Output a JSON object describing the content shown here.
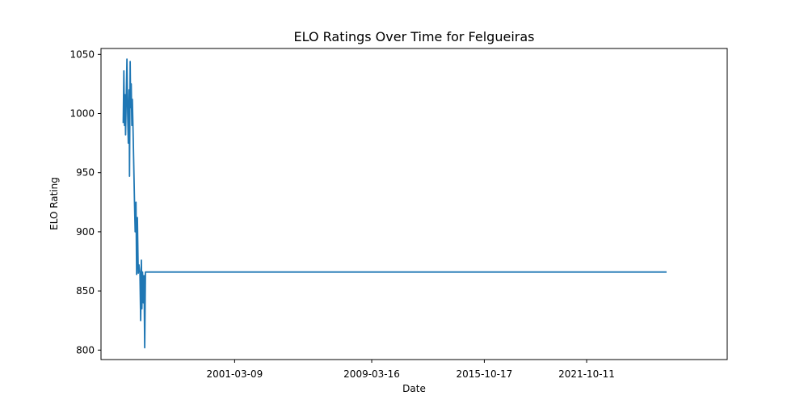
{
  "chart_data": {
    "type": "line",
    "title": "ELO Ratings Over Time for Felgueiras",
    "xlabel": "Date",
    "ylabel": "ELO Rating",
    "x_tick_labels": [
      "2001-03-09",
      "2009-03-16",
      "2015-10-17",
      "2021-10-11"
    ],
    "y_tick_values": [
      800,
      850,
      900,
      950,
      1000,
      1050
    ],
    "xlim": [
      "1993-05-15",
      "2029-12-31"
    ],
    "ylim": [
      792,
      1055
    ],
    "grid": false,
    "series": [
      {
        "color": "#1f77b4",
        "points": [
          [
            "1994-09-01",
            992
          ],
          [
            "1994-09-15",
            1036
          ],
          [
            "1994-09-28",
            990
          ],
          [
            "1994-10-10",
            1016
          ],
          [
            "1994-10-22",
            982
          ],
          [
            "1994-11-05",
            1010
          ],
          [
            "1994-11-20",
            1046
          ],
          [
            "1994-12-05",
            1000
          ],
          [
            "1994-12-20",
            975
          ],
          [
            "1995-01-05",
            1020
          ],
          [
            "1995-01-15",
            947
          ],
          [
            "1995-01-28",
            1044
          ],
          [
            "1995-02-08",
            1005
          ],
          [
            "1995-02-20",
            1025
          ],
          [
            "1995-03-05",
            990
          ],
          [
            "1995-03-15",
            1012
          ],
          [
            "1995-04-01",
            985
          ],
          [
            "1995-05-01",
            924
          ],
          [
            "1995-05-15",
            900
          ],
          [
            "1995-06-01",
            925
          ],
          [
            "1995-06-15",
            864
          ],
          [
            "1995-07-01",
            912
          ],
          [
            "1995-07-20",
            865
          ],
          [
            "1995-08-05",
            872
          ],
          [
            "1995-08-25",
            865
          ],
          [
            "1995-09-10",
            825
          ],
          [
            "1995-09-25",
            876
          ],
          [
            "1995-10-05",
            835
          ],
          [
            "1995-10-20",
            866
          ],
          [
            "1995-11-05",
            840
          ],
          [
            "1995-11-20",
            863
          ],
          [
            "1995-12-05",
            802
          ],
          [
            "1995-12-20",
            866
          ],
          [
            "2026-06-15",
            866
          ]
        ]
      }
    ]
  }
}
